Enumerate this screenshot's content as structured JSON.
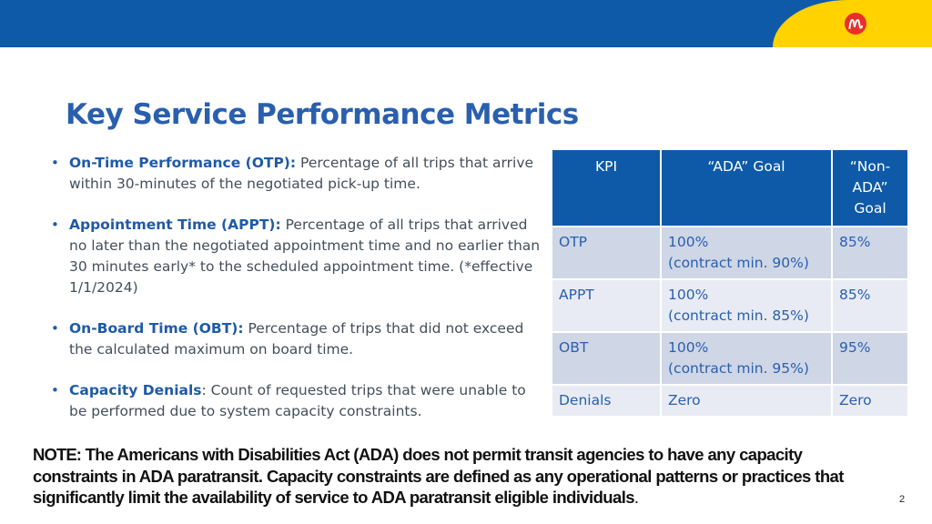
{
  "colors": {
    "header_blue": "#0f5aa8",
    "brand_yellow": "#ffd200",
    "logo_red": "#e8302a",
    "title_blue": "#2a5fae",
    "row_dark": "#cfd6e6",
    "row_light": "#e8ebf3"
  },
  "header": {
    "logo_icon": "brand-m-logo-icon"
  },
  "title": "Key Service Performance Metrics",
  "bullets": [
    {
      "term": "On-Time Performance (OTP):",
      "text": " Percentage of all trips that arrive within 30-minutes of the negotiated pick-up time."
    },
    {
      "term": "Appointment Time (APPT):",
      "text": " Percentage of all trips that arrived no later than the negotiated appointment time and no earlier than 30 minutes early* to the scheduled appointment time. (*effective 1/1/2024)"
    },
    {
      "term": "On-Board Time (OBT):",
      "text": " Percentage of trips that did not exceed the calculated maximum on board time."
    },
    {
      "term": "Capacity Denials",
      "text": ": Count of requested trips that were unable to be performed due to system capacity constraints."
    }
  ],
  "table": {
    "headers": [
      "KPI",
      "“ADA” Goal",
      "“Non-ADA” Goal"
    ],
    "rows": [
      {
        "kpi": "OTP",
        "ada_value": "100%",
        "ada_note": "(contract min. 90%)",
        "non_ada": "85%"
      },
      {
        "kpi": "APPT",
        "ada_value": "100%",
        "ada_note": "(contract min. 85%)",
        "non_ada": "85%"
      },
      {
        "kpi": "OBT",
        "ada_value": "100%",
        "ada_note": "(contract min. 95%)",
        "non_ada": "95%"
      },
      {
        "kpi": "Denials",
        "ada_value": "Zero",
        "ada_note": "",
        "non_ada": "Zero"
      }
    ]
  },
  "note": {
    "prefix": "NOTE:",
    "text": " The Americans with Disabilities Act (ADA) does not permit transit agencies to have any capacity constraints in ADA paratransit. Capacity constraints are defined as any operational patterns or practices that significantly limit the availability of service to ADA paratransit eligible individuals",
    "suffix": "."
  },
  "page_number": "2"
}
